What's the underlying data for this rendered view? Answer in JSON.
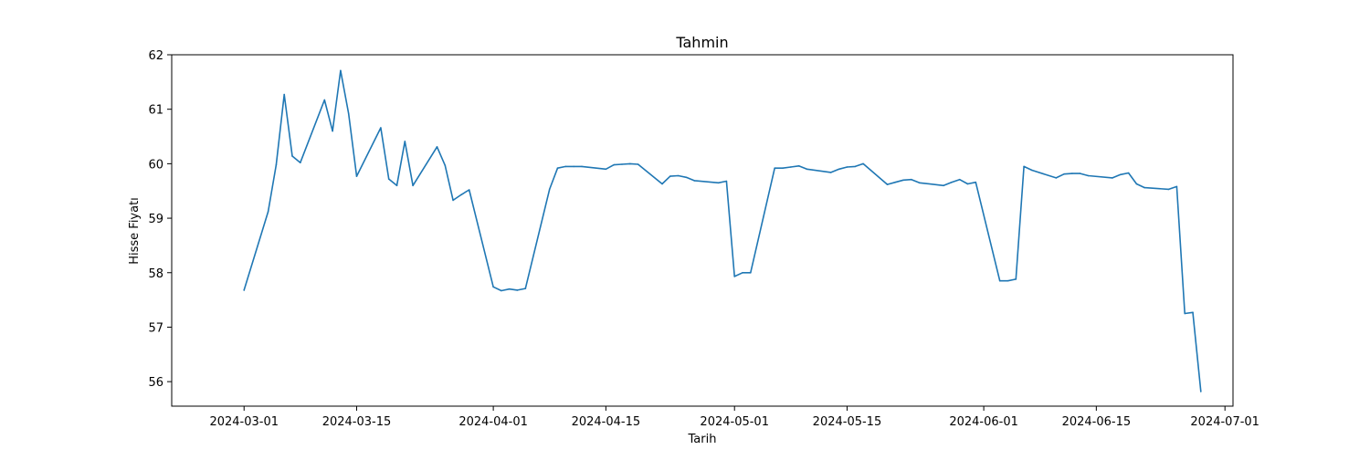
{
  "chart_data": {
    "type": "line",
    "title": "Tahmin",
    "xlabel": "Tarih",
    "ylabel": "Hisse Fiyatı",
    "ylim": [
      55.55,
      62.0
    ],
    "xlim": [
      "2024-02-21",
      "2024-07-02"
    ],
    "grid": false,
    "line_color": "#1f77b4",
    "x_ticks": [
      "2024-03-01",
      "2024-03-15",
      "2024-04-01",
      "2024-04-15",
      "2024-05-01",
      "2024-05-15",
      "2024-06-01",
      "2024-06-15",
      "2024-07-01"
    ],
    "y_ticks": [
      56,
      57,
      58,
      59,
      60,
      61,
      62
    ],
    "series": [
      {
        "x": [
          "2024-03-01",
          "2024-03-04",
          "2024-03-05",
          "2024-03-06",
          "2024-03-07",
          "2024-03-08",
          "2024-03-11",
          "2024-03-12",
          "2024-03-13",
          "2024-03-14",
          "2024-03-15",
          "2024-03-18",
          "2024-03-19",
          "2024-03-20",
          "2024-03-21",
          "2024-03-22",
          "2024-03-25",
          "2024-03-26",
          "2024-03-27",
          "2024-03-28",
          "2024-03-29",
          "2024-04-01",
          "2024-04-02",
          "2024-04-03",
          "2024-04-04",
          "2024-04-05",
          "2024-04-08",
          "2024-04-09",
          "2024-04-10",
          "2024-04-11",
          "2024-04-12",
          "2024-04-15",
          "2024-04-16",
          "2024-04-17",
          "2024-04-18",
          "2024-04-19",
          "2024-04-22",
          "2024-04-23",
          "2024-04-24",
          "2024-04-25",
          "2024-04-26",
          "2024-04-29",
          "2024-04-30",
          "2024-05-01",
          "2024-05-02",
          "2024-05-03",
          "2024-05-06",
          "2024-05-07",
          "2024-05-08",
          "2024-05-09",
          "2024-05-10",
          "2024-05-13",
          "2024-05-14",
          "2024-05-15",
          "2024-05-16",
          "2024-05-17",
          "2024-05-20",
          "2024-05-21",
          "2024-05-22",
          "2024-05-23",
          "2024-05-24",
          "2024-05-27",
          "2024-05-28",
          "2024-05-29",
          "2024-05-30",
          "2024-05-31",
          "2024-06-03",
          "2024-06-04",
          "2024-06-05",
          "2024-06-06",
          "2024-06-07",
          "2024-06-10",
          "2024-06-11",
          "2024-06-12",
          "2024-06-13",
          "2024-06-14",
          "2024-06-17",
          "2024-06-18",
          "2024-06-19",
          "2024-06-20",
          "2024-06-21",
          "2024-06-24",
          "2024-06-25",
          "2024-06-26",
          "2024-06-27",
          "2024-06-28"
        ],
        "y": [
          57.68,
          59.12,
          59.98,
          61.27,
          60.14,
          60.02,
          61.17,
          60.6,
          61.71,
          60.92,
          59.77,
          60.66,
          59.72,
          59.6,
          60.41,
          59.6,
          60.31,
          59.97,
          59.33,
          59.43,
          59.52,
          57.74,
          57.67,
          57.7,
          57.68,
          57.71,
          59.53,
          59.92,
          59.95,
          59.95,
          59.95,
          59.9,
          59.98,
          59.99,
          60.0,
          59.99,
          59.63,
          59.77,
          59.78,
          59.75,
          59.69,
          59.65,
          59.68,
          57.93,
          58.0,
          58.0,
          59.92,
          59.92,
          59.94,
          59.96,
          59.9,
          59.84,
          59.9,
          59.94,
          59.95,
          60.0,
          59.62,
          59.66,
          59.7,
          59.71,
          59.65,
          59.6,
          59.66,
          59.71,
          59.63,
          59.66,
          57.85,
          57.85,
          57.88,
          59.95,
          59.88,
          59.74,
          59.81,
          59.82,
          59.82,
          59.78,
          59.74,
          59.8,
          59.83,
          59.63,
          59.56,
          59.53,
          59.58,
          57.25,
          57.27,
          55.82
        ]
      }
    ]
  }
}
